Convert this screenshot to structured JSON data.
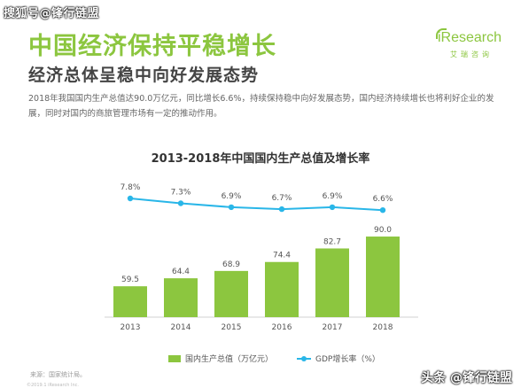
{
  "watermark_top": "搜狐号@锋行链盟",
  "watermark_bottom": "头条 @锋行链盟",
  "logo": {
    "brand": "iResearch",
    "sub": "艾瑞咨询"
  },
  "title": "中国经济保持平稳增长",
  "subtitle": "经济总体呈稳中向好发展态势",
  "paragraph": "2018年我国国内生产总值达90.0万亿元，同比增长6.6%，持续保持稳中向好发展态势，国内经济持续增长也将利好企业的发展，同时对国内的商旅管理市场有一定的推动作用。",
  "source": "来源：国家统计局。",
  "footer": "©2019.1 iResearch Inc.",
  "colors": {
    "accent": "#8cc63f",
    "line": "#29b6e8"
  },
  "chart_data": {
    "type": "bar",
    "title": "2013-2018年中国国内生产总值及增长率",
    "categories": [
      "2013",
      "2014",
      "2015",
      "2016",
      "2017",
      "2018"
    ],
    "series": [
      {
        "name": "国内生产总值（万亿元）",
        "type": "bar",
        "values": [
          59.5,
          64.4,
          68.9,
          74.4,
          82.7,
          90.0
        ],
        "labels": [
          "59.5",
          "64.4",
          "68.9",
          "74.4",
          "82.7",
          "90.0"
        ]
      },
      {
        "name": "GDP增长率（%）",
        "type": "line",
        "values": [
          7.8,
          7.3,
          6.9,
          6.7,
          6.9,
          6.6
        ],
        "labels": [
          "7.8%",
          "7.3%",
          "6.9%",
          "6.7%",
          "6.9%",
          "6.6%"
        ]
      }
    ],
    "grid": false,
    "legend": "bottom"
  }
}
